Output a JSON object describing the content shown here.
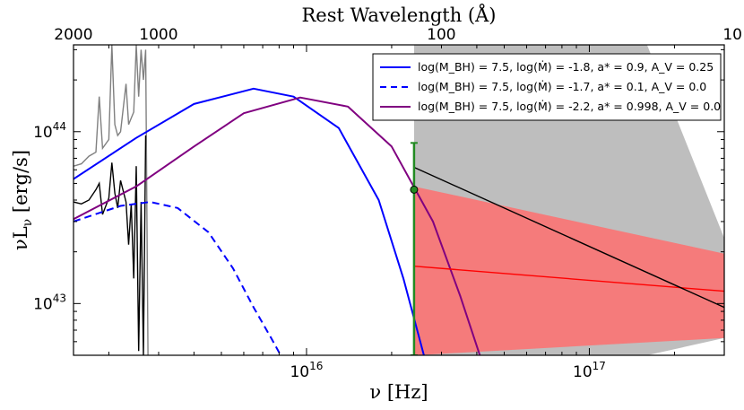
{
  "chart_data": {
    "type": "line",
    "xlabel": "ν [Hz]",
    "ylabel": "νL_ν [erg/s]",
    "top_xlabel": "Rest Wavelength (Å)",
    "xscale": "log",
    "yscale": "log",
    "xlim": [
      1500000000000000.0,
      3e+17
    ],
    "ylim": [
      5e+42,
      3.2e+44
    ],
    "x_ticks": [
      {
        "value": 1e+16,
        "label": "10^16"
      },
      {
        "value": 1e+17,
        "label": "10^17"
      }
    ],
    "y_ticks": [
      {
        "value": 1e+43,
        "label": "10^43"
      },
      {
        "value": 1e+44,
        "label": "10^44"
      }
    ],
    "top_ticks": [
      {
        "wavelength_angstrom": 2000,
        "label": "2000"
      },
      {
        "wavelength_angstrom": 1000,
        "label": "1000"
      },
      {
        "wavelength_angstrom": 100,
        "label": "100"
      },
      {
        "wavelength_angstrom": 10,
        "label": "10"
      }
    ],
    "legend_position": "top-right",
    "legend": [
      {
        "label": "log(M_BH) = 7.5, log(Ṁ) = -1.8, a* = 0.9, A_V = 0.25",
        "color": "#0000ff",
        "style": "solid"
      },
      {
        "label": "log(M_BH) = 7.5, log(Ṁ) = -1.7, a* = 0.1, A_V = 0.0",
        "color": "#0000ff",
        "style": "dashed"
      },
      {
        "label": "log(M_BH) = 7.5, log(Ṁ) = -2.2, a* = 0.998, A_V = 0.0",
        "color": "#800080",
        "style": "solid"
      }
    ],
    "series": [
      {
        "color": "#0000ff",
        "style": "solid",
        "x": [
          1500000000000000.0,
          2500000000000000.0,
          4000000000000000.0,
          6500000000000000.0,
          9000000000000000.0,
          1.3e+16,
          1.8e+16,
          2.2e+16,
          2.6e+16
        ],
        "y": [
          5.3e+43,
          9.2e+43,
          1.45e+44,
          1.78e+44,
          1.6e+44,
          1.05e+44,
          4e+43,
          1.4e+43,
          5e+42
        ]
      },
      {
        "color": "#0000ff",
        "style": "dashed",
        "x": [
          1500000000000000.0,
          2200000000000000.0,
          2800000000000000.0,
          3500000000000000.0,
          4500000000000000.0,
          5500000000000000.0,
          6500000000000000.0,
          7500000000000000.0,
          8100000000000000.0
        ],
        "y": [
          3e+43,
          3.7e+43,
          3.9e+43,
          3.6e+43,
          2.6e+43,
          1.6e+43,
          9.5e+42,
          6.3e+42,
          5e+42
        ]
      },
      {
        "color": "#800080",
        "style": "solid",
        "x": [
          1500000000000000.0,
          2500000000000000.0,
          4000000000000000.0,
          6000000000000000.0,
          9500000000000000.0,
          1.4e+16,
          2e+16,
          2.8e+16,
          3.5e+16,
          4.1e+16
        ],
        "y": [
          3.1e+43,
          4.8e+43,
          8.2e+43,
          1.28e+44,
          1.58e+44,
          1.4e+44,
          8.2e+43,
          3e+43,
          1.1e+43,
          5e+42
        ]
      },
      {
        "color": "#ff0000",
        "style": "solid",
        "x": [
          2.4e+16,
          3e+17
        ],
        "y": [
          1.65e+43,
          1.18e+43
        ]
      },
      {
        "color": "#000000",
        "style": "solid",
        "x": [
          2.4e+16,
          3e+17
        ],
        "y": [
          6.2e+43,
          9.5e+42
        ]
      }
    ],
    "bands": [
      {
        "color": "#ff7070",
        "x": [
          2.4e+16,
          3e+17
        ],
        "lower": [
          5e+42,
          6.3e+42
        ],
        "upper": [
          4.8e+43,
          1.95e+43
        ]
      },
      {
        "color": "#b3b3b3",
        "x": [
          2.4e+16,
          1.6e+17,
          3e+17
        ],
        "lower": [
          5e+42,
          5e+42,
          6.3e+42
        ],
        "upper": [
          3.2e+44,
          3.2e+44,
          2.4e+43
        ]
      }
    ],
    "error_point": {
      "color": "#228B22",
      "x": 2.4e+16,
      "y": 4.6e+43,
      "y_low": 5e+42,
      "y_high": 8.6e+43
    },
    "spectra": [
      {
        "color": "#808080",
        "x": [
          1500000000000000.0,
          1600000000000000.0,
          1700000000000000.0,
          1800000000000000.0,
          1850000000000000.0,
          1900000000000000.0,
          2000000000000000.0,
          2050000000000000.0,
          2100000000000000.0,
          2150000000000000.0,
          2200000000000000.0,
          2300000000000000.0,
          2350000000000000.0,
          2400000000000000.0,
          2450000000000000.0,
          2500000000000000.0,
          2550000000000000.0,
          2600000000000000.0,
          2650000000000000.0,
          2700000000000000.0,
          2750000000000000.0
        ],
        "y": [
          6.3e+43,
          6.5e+43,
          7.2e+43,
          7.6e+43,
          1.6e+44,
          8e+43,
          9e+43,
          3.2e+44,
          1.1e+44,
          9.5e+43,
          1e+44,
          1.9e+44,
          1.1e+44,
          1.2e+44,
          1.3e+44,
          3.2e+44,
          1.6e+44,
          3e+44,
          2e+44,
          3e+44,
          5e+42
        ]
      },
      {
        "color": "#000000",
        "x": [
          1500000000000000.0,
          1600000000000000.0,
          1700000000000000.0,
          1800000000000000.0,
          1850000000000000.0,
          1900000000000000.0,
          2000000000000000.0,
          2050000000000000.0,
          2100000000000000.0,
          2150000000000000.0,
          2200000000000000.0,
          2300000000000000.0,
          2350000000000000.0,
          2400000000000000.0,
          2450000000000000.0,
          2500000000000000.0,
          2550000000000000.0,
          2600000000000000.0,
          2650000000000000.0,
          2700000000000000.0
        ],
        "y": [
          3.9e+43,
          3.8e+43,
          4e+43,
          4.6e+43,
          5e+43,
          3.3e+43,
          4.1e+43,
          6.6e+43,
          4.4e+43,
          3.6e+43,
          5.2e+43,
          3.9e+43,
          2.2e+43,
          3.8e+43,
          1.4e+43,
          6.3e+43,
          5.3e+42,
          3.9e+43,
          5e+42,
          9.5e+43
        ]
      }
    ]
  }
}
